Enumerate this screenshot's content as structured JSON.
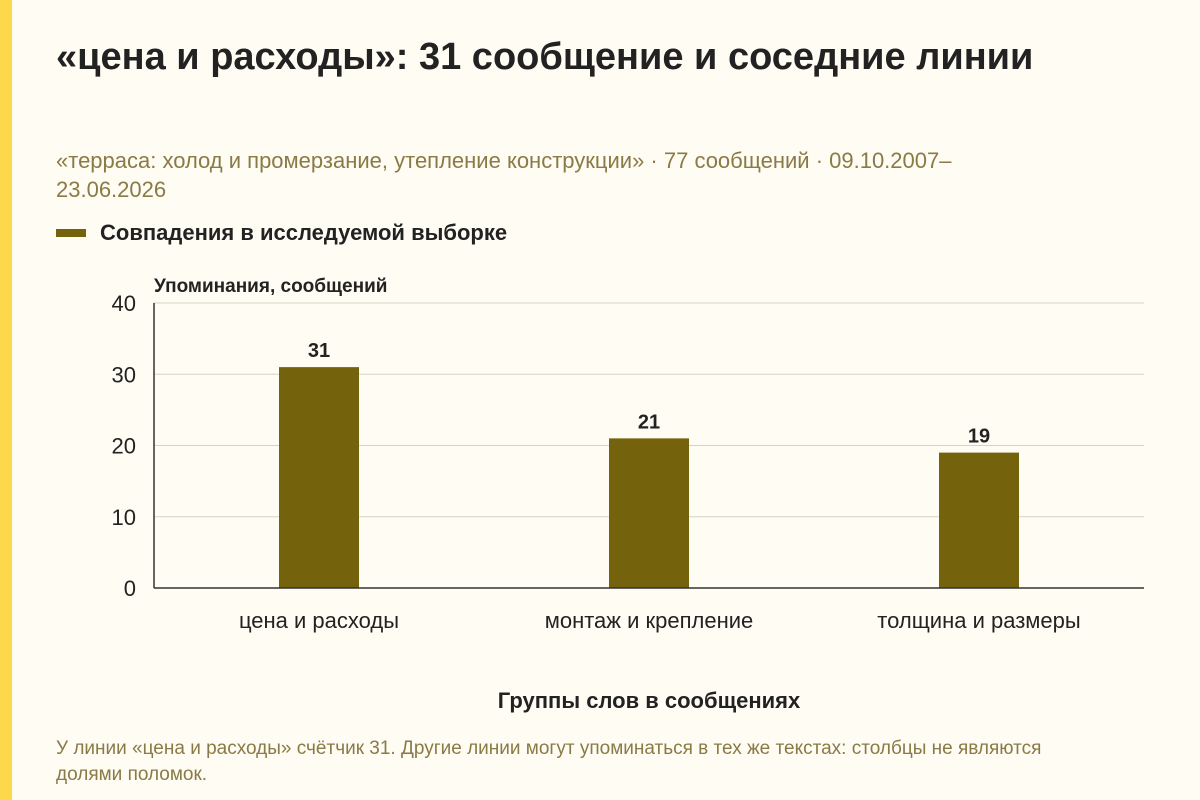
{
  "title": "«цена и расходы»: 31 сообщение и соседние линии",
  "subtitle": "«терраса: холод и промерзание, утепление конструкции» · 77 сообщений · 09.10.2007–23.06.2026",
  "footnote": "У линии «цена и расходы» счётчик 31. Другие линии могут упоминаться в тех же текстах: столбцы не являются долями поломок.",
  "colors": {
    "accent": "#fdd84a",
    "bar": "#75620d",
    "muted_text": "#8a7a45"
  },
  "chart_data": {
    "type": "bar",
    "categories": [
      "цена и расходы",
      "монтаж и крепление",
      "толщина и размеры"
    ],
    "series": [
      {
        "name": "Совпадения в исследуемой выборке",
        "values": [
          31,
          21,
          19
        ]
      }
    ],
    "ylabel": "Упоминания, сообщений",
    "xlabel": "Группы слов в сообщениях",
    "ylim": [
      0,
      40
    ],
    "yticks": [
      0,
      10,
      20,
      30,
      40
    ],
    "data_labels": true,
    "grid": true,
    "legend": "top-left"
  }
}
